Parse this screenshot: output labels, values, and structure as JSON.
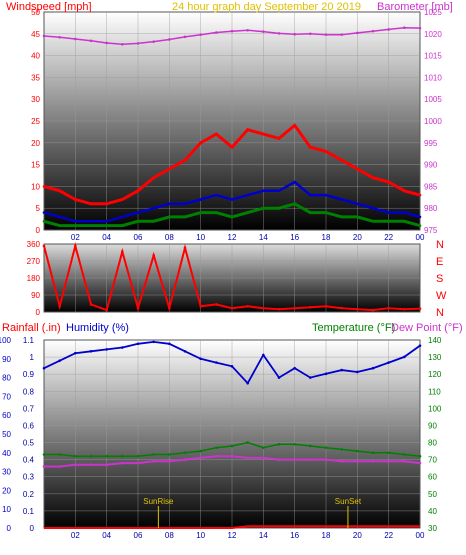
{
  "chart_data": [
    {
      "type": "line",
      "title": "24 hour graph day    September 20 2019",
      "ylabel": "Windspeed [mph]",
      "y2label": "Barometer [mb]",
      "x_ticks": [
        "02",
        "04",
        "06",
        "08",
        "10",
        "12",
        "14",
        "16",
        "18",
        "20",
        "22",
        "00"
      ],
      "y_ticks": [
        "0",
        "5",
        "10",
        "15",
        "20",
        "25",
        "30",
        "35",
        "40",
        "45",
        "50"
      ],
      "y2_ticks": [
        "975",
        "980",
        "985",
        "990",
        "995",
        "1000",
        "1005",
        "1010",
        "1015",
        "1020",
        "1025"
      ],
      "ylim": [
        0,
        50
      ],
      "y2lim": [
        975,
        1025
      ],
      "x": [
        0,
        1,
        2,
        3,
        4,
        5,
        6,
        7,
        8,
        9,
        10,
        11,
        12,
        13,
        14,
        15,
        16,
        17,
        18,
        19,
        20,
        21,
        22,
        23,
        24
      ],
      "series": [
        {
          "values": [
            1019.5,
            1019.2,
            1018.8,
            1018.4,
            1017.9,
            1017.6,
            1017.8,
            1018.2,
            1018.7,
            1019.3,
            1019.8,
            1020.3,
            1020.6,
            1020.8,
            1020.5,
            1020.1,
            1019.9,
            1020.0,
            1019.8,
            1019.8,
            1020.2,
            1020.6,
            1021.0,
            1021.4,
            1021.3
          ]
        },
        {
          "values": [
            10,
            9,
            7,
            6,
            6,
            7,
            9,
            12,
            14,
            16,
            20,
            22,
            19,
            23,
            22,
            21,
            24,
            19,
            18,
            16,
            14,
            12,
            11,
            9,
            8
          ]
        },
        {
          "values": [
            4,
            3,
            2,
            2,
            2,
            3,
            4,
            5,
            6,
            6,
            7,
            8,
            7,
            8,
            9,
            9,
            11,
            8,
            8,
            7,
            6,
            5,
            4,
            4,
            3
          ]
        },
        {
          "values": [
            2,
            1,
            1,
            1,
            1,
            1,
            2,
            2,
            3,
            3,
            4,
            4,
            3,
            4,
            5,
            5,
            6,
            4,
            4,
            3,
            3,
            2,
            2,
            2,
            1
          ]
        }
      ],
      "colors": [
        "#cc33cc",
        "#ff0000",
        "#0000cc",
        "#008000"
      ]
    },
    {
      "type": "line",
      "y_ticks": [
        "0",
        "90",
        "180",
        "270",
        "360"
      ],
      "y_letters": [
        "N",
        "W",
        "S",
        "E",
        "N"
      ],
      "ylim": [
        0,
        360
      ],
      "x": [
        0,
        1,
        2,
        3,
        4,
        5,
        6,
        7,
        8,
        9,
        10,
        11,
        12,
        13,
        14,
        15,
        16,
        17,
        18,
        19,
        20,
        21,
        22,
        23,
        24
      ],
      "values": [
        350,
        30,
        350,
        40,
        10,
        320,
        20,
        300,
        20,
        340,
        30,
        40,
        20,
        30,
        20,
        15,
        20,
        25,
        30,
        20,
        15,
        10,
        20,
        15,
        18
      ],
      "colors": [
        "#ff0000"
      ]
    },
    {
      "type": "line",
      "title_left": "Rainfall (.in)",
      "title_humidity": "Humidity (%)",
      "title_temp": "Temperature (°F)",
      "title_dew": "Dew Point (°F)",
      "x_ticks": [
        "02",
        "04",
        "06",
        "08",
        "10",
        "12",
        "14",
        "16",
        "18",
        "20",
        "22",
        "00"
      ],
      "rain_ticks": [
        "0",
        "0.1",
        "0.2",
        "0.3",
        "0.4",
        "0.5",
        "0.6",
        "0.7",
        "0.8",
        "0.9",
        "1",
        "1.1"
      ],
      "hum_ticks": [
        "0",
        "10",
        "20",
        "30",
        "40",
        "50",
        "60",
        "70",
        "80",
        "90",
        "100"
      ],
      "temp_ticks": [
        "30",
        "40",
        "50",
        "60",
        "70",
        "80",
        "90",
        "100",
        "110",
        "120",
        "130",
        "140"
      ],
      "rain_ylim": [
        0,
        1.1
      ],
      "hum_ylim": [
        0,
        100
      ],
      "temp_ylim": [
        30,
        140
      ],
      "x": [
        0,
        1,
        2,
        3,
        4,
        5,
        6,
        7,
        8,
        9,
        10,
        11,
        12,
        13,
        14,
        15,
        16,
        17,
        18,
        19,
        20,
        21,
        22,
        23,
        24
      ],
      "humidity": [
        85,
        89,
        93,
        94,
        95,
        96,
        98,
        99,
        98,
        94,
        90,
        88,
        86,
        77,
        92,
        80,
        85,
        80,
        82,
        84,
        83,
        85,
        88,
        91,
        97
      ],
      "temperature": [
        73,
        73,
        72,
        72,
        72,
        72,
        72,
        73,
        73,
        74,
        75,
        77,
        78,
        80,
        77,
        79,
        79,
        78,
        77,
        76,
        75,
        74,
        74,
        73,
        72
      ],
      "dew_point": [
        66,
        66,
        67,
        67,
        67,
        68,
        68,
        69,
        69,
        70,
        71,
        72,
        72,
        71,
        71,
        70,
        70,
        70,
        70,
        69,
        69,
        69,
        69,
        69,
        68
      ],
      "rainfall": [
        0,
        0,
        0,
        0,
        0,
        0,
        0,
        0,
        0,
        0,
        0,
        0,
        0,
        0.01,
        0.01,
        0.01,
        0.01,
        0.01,
        0.01,
        0.01,
        0.01,
        0.01,
        0.01,
        0.01,
        0.01
      ],
      "annotations": [
        "SunRise",
        "SunSet"
      ],
      "sun_times": [
        7.3,
        19.4
      ],
      "colors": [
        "#ff0000",
        "#0000cc",
        "#008000",
        "#cc33cc"
      ]
    }
  ]
}
